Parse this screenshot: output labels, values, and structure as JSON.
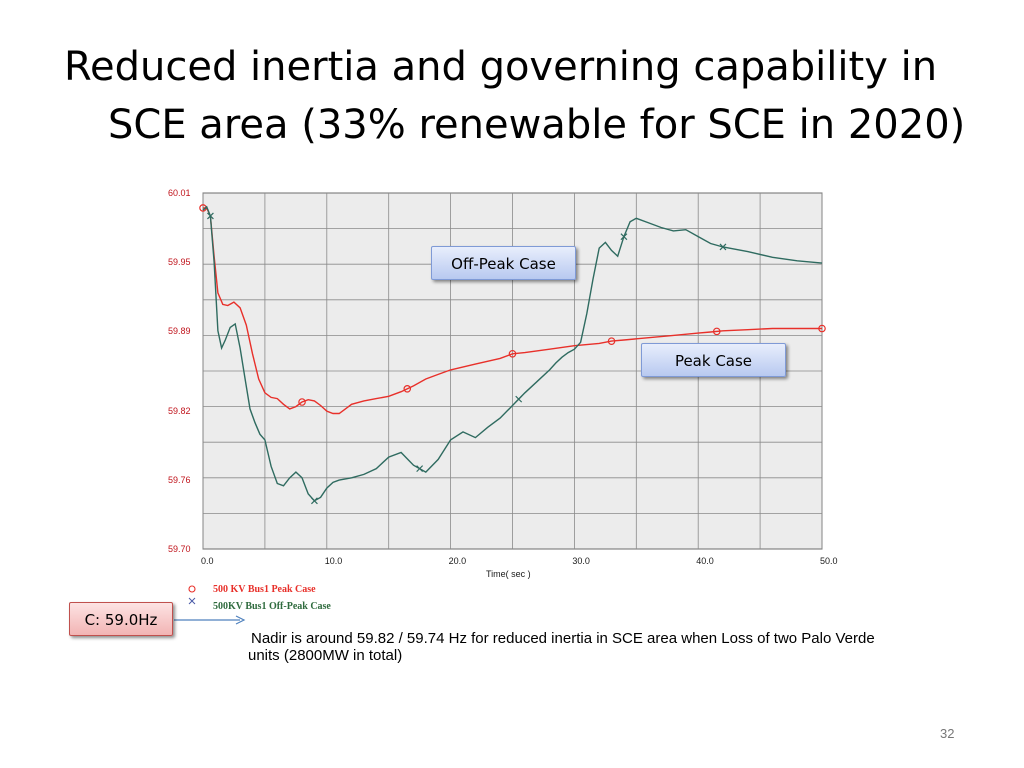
{
  "slide": {
    "title_line1": "Reduced inertia and governing capability in",
    "title_line2": "SCE area (33% renewable for SCE in 2020)",
    "callouts": {
      "off_peak": "Off-Peak Case",
      "peak": "Peak Case",
      "c_label": "C: 59.0Hz"
    },
    "note": "Nadir is around 59.82 / 59.74 Hz for reduced inertia in SCE area when Loss of two Palo Verde units (2800MW in total)",
    "page_number": "32"
  },
  "colors": {
    "peak_series": "#e8302a",
    "offpeak_series": "#2f6b60",
    "grid": "#8a8a8a",
    "plot_bg": "#ececec",
    "axis_label": "#c0141c"
  },
  "chart_data": {
    "type": "line",
    "title": "",
    "xlabel": "Time( sec )",
    "ylabel": "",
    "xlim": [
      0,
      50
    ],
    "ylim": [
      59.7,
      60.01
    ],
    "x_ticks": [
      0,
      5,
      10,
      15,
      20,
      25,
      30,
      35,
      40,
      45,
      50
    ],
    "x_tick_labels": [
      "0.0",
      "",
      "10.0",
      "",
      "20.0",
      "",
      "30.0",
      "",
      "40.0",
      "",
      "50.0"
    ],
    "y_ticks": [
      59.7,
      59.76,
      59.82,
      59.89,
      59.95,
      60.01
    ],
    "y_tick_labels": [
      "59.70",
      "59.76",
      "59.82",
      "59.89",
      "59.95",
      "60.01"
    ],
    "grid": true,
    "legend": "bottom-left",
    "series": [
      {
        "name": "500 KV Bus1   Peak Case",
        "marker": "o",
        "x": [
          0,
          0.3,
          0.6,
          0.9,
          1.2,
          1.6,
          2.0,
          2.5,
          3.0,
          3.5,
          4.0,
          4.5,
          5.0,
          5.5,
          6.0,
          6.5,
          7.0,
          7.5,
          8.0,
          8.5,
          9.0,
          9.5,
          10.0,
          10.5,
          11.0,
          11.5,
          12.0,
          13.0,
          14.0,
          15.0,
          16.0,
          17.0,
          18.0,
          19.0,
          20.0,
          22.0,
          24.0,
          25.0,
          26.0,
          28.0,
          30.0,
          32.0,
          33.0,
          34.0,
          36.0,
          38.0,
          40.0,
          41.0,
          42.0,
          44.0,
          46.0,
          48.0,
          50.0
        ],
        "y": [
          59.997,
          59.997,
          59.99,
          59.955,
          59.923,
          59.913,
          59.912,
          59.915,
          59.91,
          59.895,
          59.87,
          59.848,
          59.836,
          59.832,
          59.831,
          59.826,
          59.822,
          59.824,
          59.828,
          59.83,
          59.829,
          59.825,
          59.82,
          59.818,
          59.818,
          59.822,
          59.826,
          59.829,
          59.831,
          59.833,
          59.837,
          59.842,
          59.848,
          59.852,
          59.856,
          59.861,
          59.866,
          59.87,
          59.871,
          59.874,
          59.877,
          59.879,
          59.881,
          59.882,
          59.884,
          59.886,
          59.888,
          59.889,
          59.89,
          59.891,
          59.892,
          59.892,
          59.892
        ]
      },
      {
        "name": "500KV Bus1  Off-Peak Case",
        "marker": "x",
        "x": [
          0,
          0.3,
          0.6,
          0.9,
          1.2,
          1.5,
          1.8,
          2.2,
          2.6,
          3.0,
          3.4,
          3.8,
          4.2,
          4.6,
          5.0,
          5.5,
          6.0,
          6.5,
          7.0,
          7.5,
          8.0,
          8.5,
          9.0,
          9.5,
          10.0,
          10.5,
          11.0,
          12.0,
          13.0,
          14.0,
          15.0,
          16.0,
          17.0,
          18.0,
          19.0,
          20.0,
          21.0,
          22.0,
          23.0,
          24.0,
          25.0,
          26.0,
          27.0,
          28.0,
          28.5,
          29.0,
          29.5,
          30.0,
          30.5,
          31.0,
          31.5,
          32.0,
          32.5,
          33.0,
          33.5,
          34.0,
          34.5,
          35.0,
          36.0,
          37.0,
          38.0,
          39.0,
          40.0,
          41.0,
          42.0,
          44.0,
          46.0,
          48.0,
          50.0
        ],
        "y": [
          59.995,
          59.998,
          59.99,
          59.95,
          59.89,
          59.875,
          59.882,
          59.893,
          59.896,
          59.875,
          59.848,
          59.822,
          59.81,
          59.8,
          59.795,
          59.772,
          59.757,
          59.755,
          59.762,
          59.767,
          59.762,
          59.748,
          59.742,
          59.745,
          59.753,
          59.758,
          59.76,
          59.762,
          59.765,
          59.77,
          59.78,
          59.784,
          59.773,
          59.767,
          59.778,
          59.795,
          59.802,
          59.797,
          59.806,
          59.814,
          59.825,
          59.836,
          59.846,
          59.856,
          59.862,
          59.867,
          59.871,
          59.874,
          59.88,
          59.905,
          59.935,
          59.962,
          59.967,
          59.96,
          59.955,
          59.972,
          59.985,
          59.988,
          59.984,
          59.98,
          59.977,
          59.978,
          59.972,
          59.966,
          59.963,
          59.959,
          59.954,
          59.951,
          59.949
        ]
      }
    ]
  }
}
